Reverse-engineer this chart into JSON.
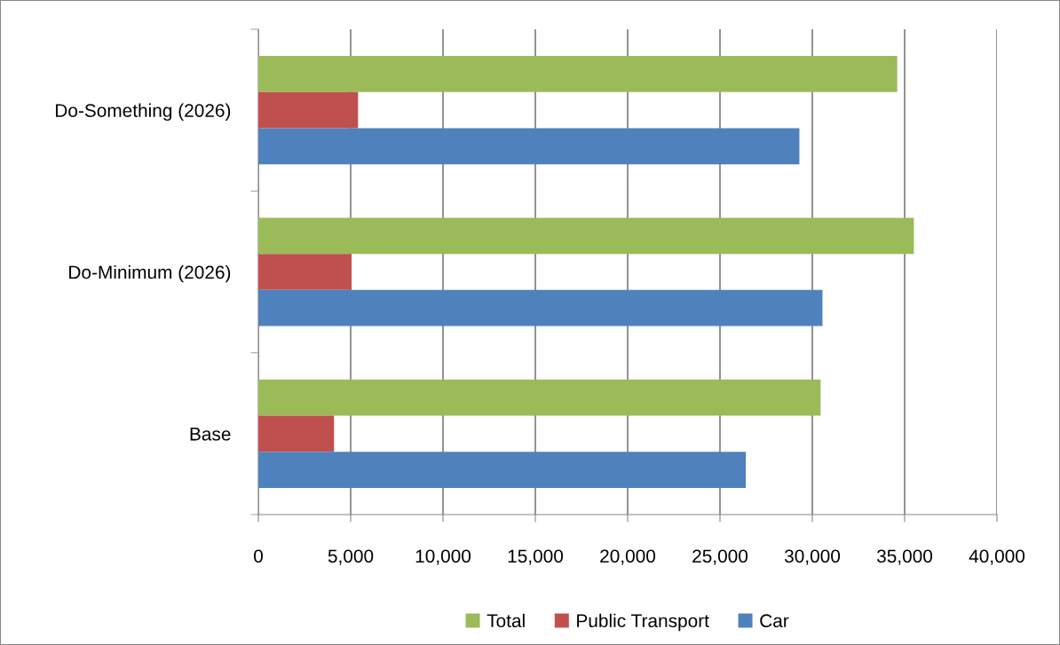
{
  "chart_data": {
    "type": "bar",
    "orientation": "horizontal",
    "categories": [
      "Do-Something (2026)",
      "Do-Minimum (2026)",
      "Base"
    ],
    "series": [
      {
        "name": "Total",
        "color": "#9bbb59",
        "values": [
          34600,
          35500,
          30450
        ]
      },
      {
        "name": "Public Transport",
        "color": "#c0504d",
        "values": [
          5400,
          5050,
          4100
        ]
      },
      {
        "name": "Car",
        "color": "#4f81bd",
        "values": [
          29300,
          30550,
          26400
        ]
      }
    ],
    "xlim": [
      0,
      40000
    ],
    "xticks": [
      0,
      {
        "value": 5000,
        "label": "5,000"
      },
      {
        "value": 10000,
        "label": "10,000"
      },
      {
        "value": 15000,
        "label": "15,000"
      },
      {
        "value": 20000,
        "label": "20,000"
      },
      {
        "value": 25000,
        "label": "25,000"
      },
      {
        "value": 30000,
        "label": "30,000"
      },
      {
        "value": 35000,
        "label": "35,000"
      },
      {
        "value": 40000,
        "label": "40,000"
      }
    ],
    "grid": "x",
    "legend": "bottom"
  }
}
